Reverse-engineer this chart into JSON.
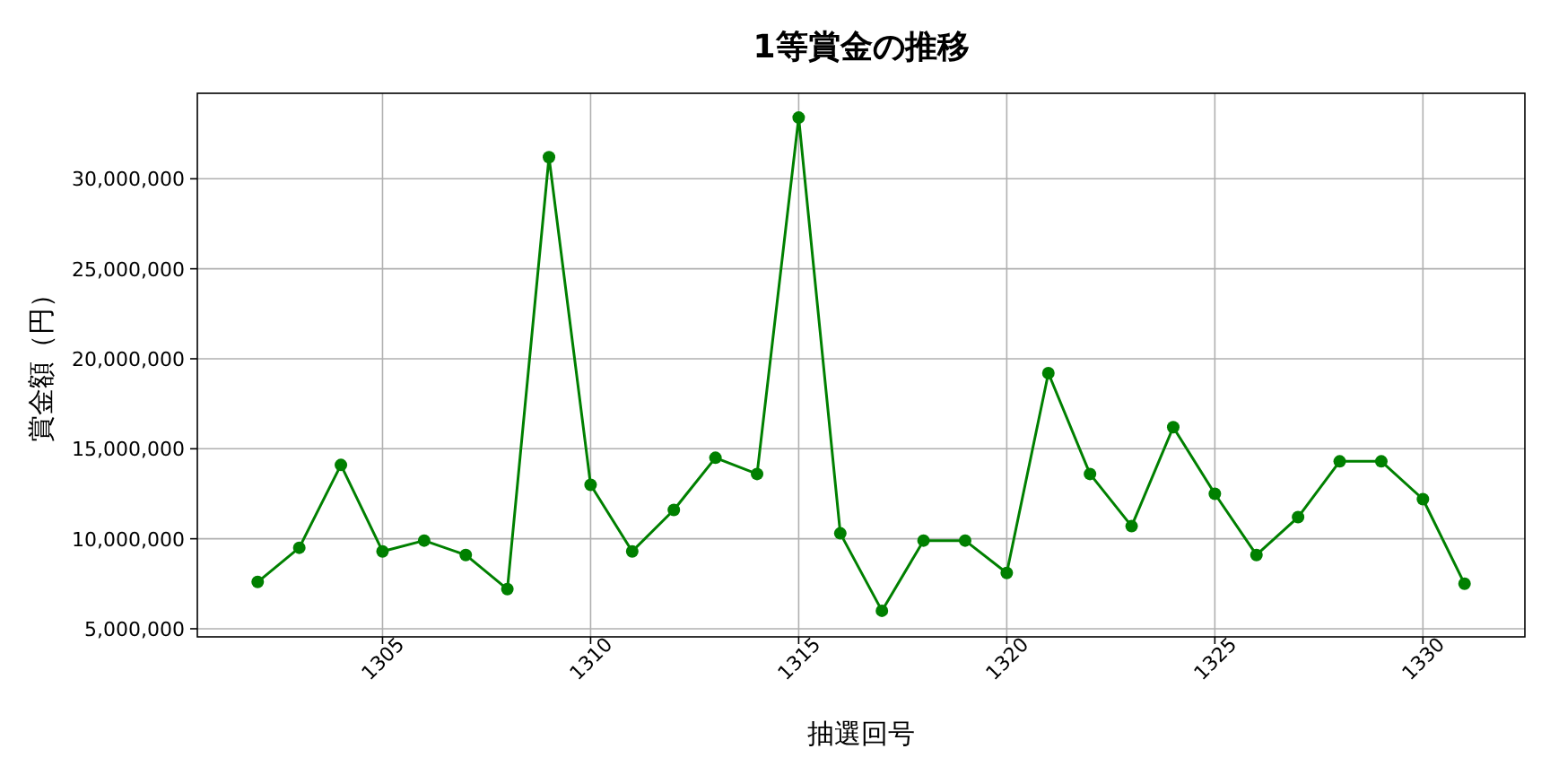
{
  "chart_data": {
    "type": "line",
    "title": "1等賞金の推移",
    "xlabel": "抽選回号",
    "ylabel": "賞金額（円）",
    "x": [
      1302,
      1303,
      1304,
      1305,
      1306,
      1307,
      1308,
      1309,
      1310,
      1311,
      1312,
      1313,
      1314,
      1315,
      1316,
      1317,
      1318,
      1319,
      1320,
      1321,
      1322,
      1323,
      1324,
      1325,
      1326,
      1327,
      1328,
      1329,
      1330,
      1331
    ],
    "series": [
      {
        "color": "#008000",
        "values": [
          7600000,
          9500000,
          14100000,
          9300000,
          9900000,
          9100000,
          7200000,
          31200000,
          13000000,
          9300000,
          11600000,
          14500000,
          13600000,
          33400000,
          10300000,
          6000000,
          9900000,
          9900000,
          8100000,
          19200000,
          13600000,
          10700000,
          16200000,
          12500000,
          9100000,
          11200000,
          14300000,
          14300000,
          12200000,
          7500000
        ]
      }
    ],
    "xlim": [
      1300.55,
      1332.45
    ],
    "ylim": [
      4550000,
      34750000
    ],
    "xticks": [
      1305,
      1310,
      1315,
      1320,
      1325,
      1330
    ],
    "yticks": [
      {
        "value": 5000000,
        "label": "5,000,000"
      },
      {
        "value": 10000000,
        "label": "10,000,000"
      },
      {
        "value": 15000000,
        "label": "15,000,000"
      },
      {
        "value": 20000000,
        "label": "20,000,000"
      },
      {
        "value": 25000000,
        "label": "25,000,000"
      },
      {
        "value": 30000000,
        "label": "30,000,000"
      }
    ],
    "grid": true,
    "marker": "circle",
    "line_style": "solid"
  }
}
